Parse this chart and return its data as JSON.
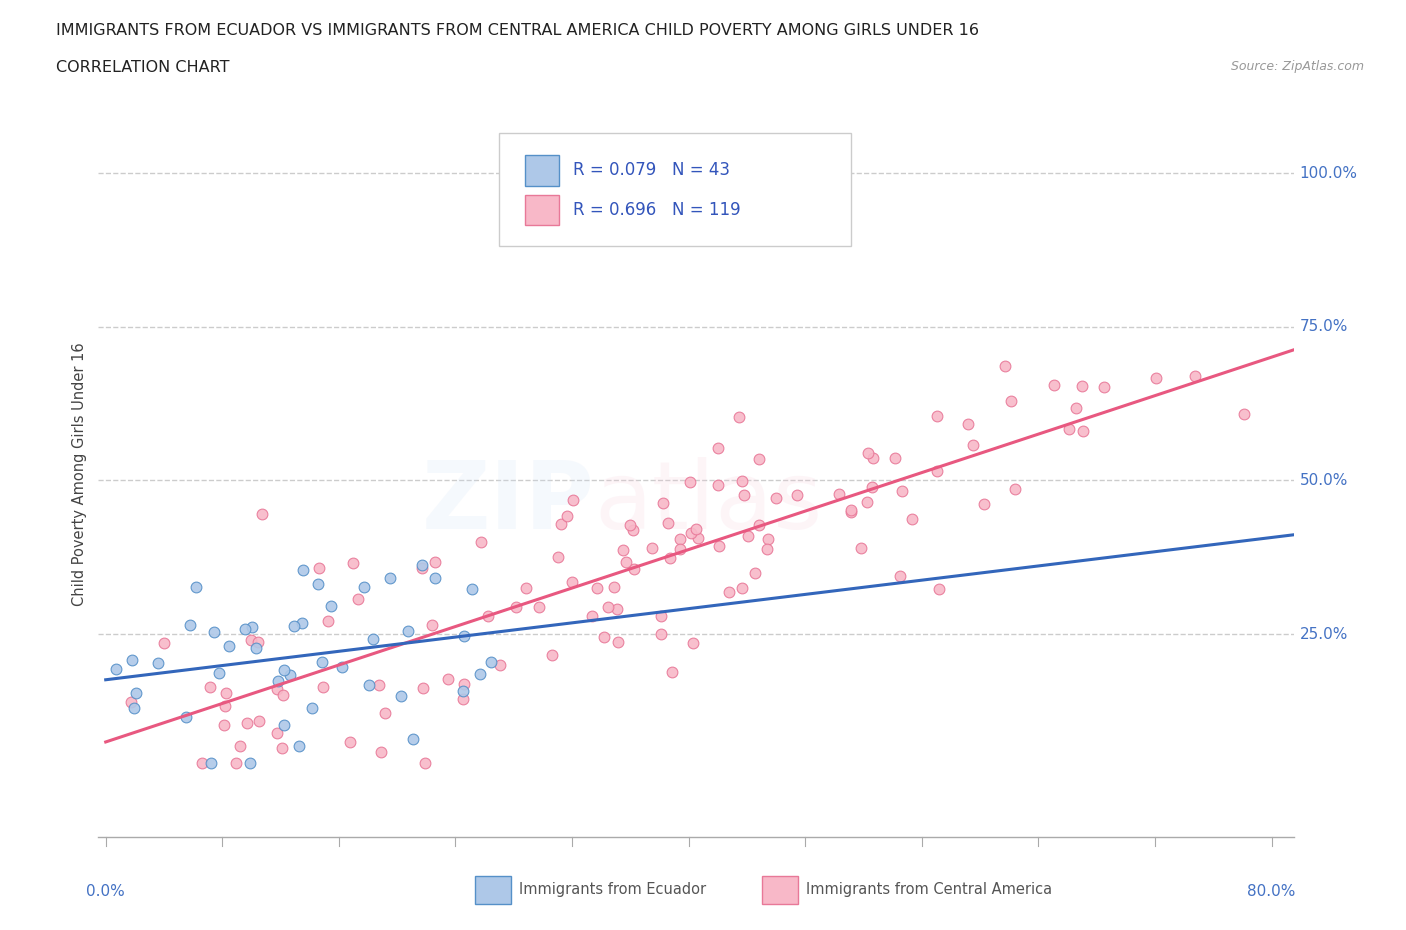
{
  "title": "IMMIGRANTS FROM ECUADOR VS IMMIGRANTS FROM CENTRAL AMERICA CHILD POVERTY AMONG GIRLS UNDER 16",
  "subtitle": "CORRELATION CHART",
  "source": "Source: ZipAtlas.com",
  "ylabel": "Child Poverty Among Girls Under 16",
  "ecuador_R": 0.079,
  "ecuador_N": 43,
  "central_R": 0.696,
  "central_N": 119,
  "ecuador_fill": "#aec8e8",
  "ecuador_edge": "#5590c8",
  "ecuador_line": "#3366bb",
  "central_fill": "#f8b8c8",
  "central_edge": "#e87898",
  "central_line": "#e85880",
  "legend_text_color": "#3355bb",
  "ytick_color": "#4472c4",
  "xtick_color": "#4472c4",
  "grid_color": "#cccccc",
  "watermark_zip_color": "#cce0f5",
  "watermark_atlas_color": "#f5c8d8"
}
